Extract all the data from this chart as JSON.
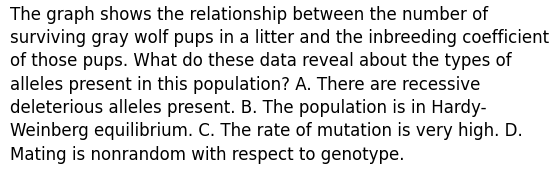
{
  "text": "The graph shows the relationship between the number of\nsurviving gray wolf pups in a litter and the inbreeding coefficient\nof those pups. What do these data reveal about the types of\nalleles present in this population? A. There are recessive\ndeleterious alleles present. B. The population is in Hardy-\nWeinberg equilibrium. C. The rate of mutation is very high. D.\nMating is nonrandom with respect to genotype.",
  "background_color": "#ffffff",
  "text_color": "#000000",
  "font_size": 12.0,
  "fig_width": 5.58,
  "fig_height": 1.88
}
